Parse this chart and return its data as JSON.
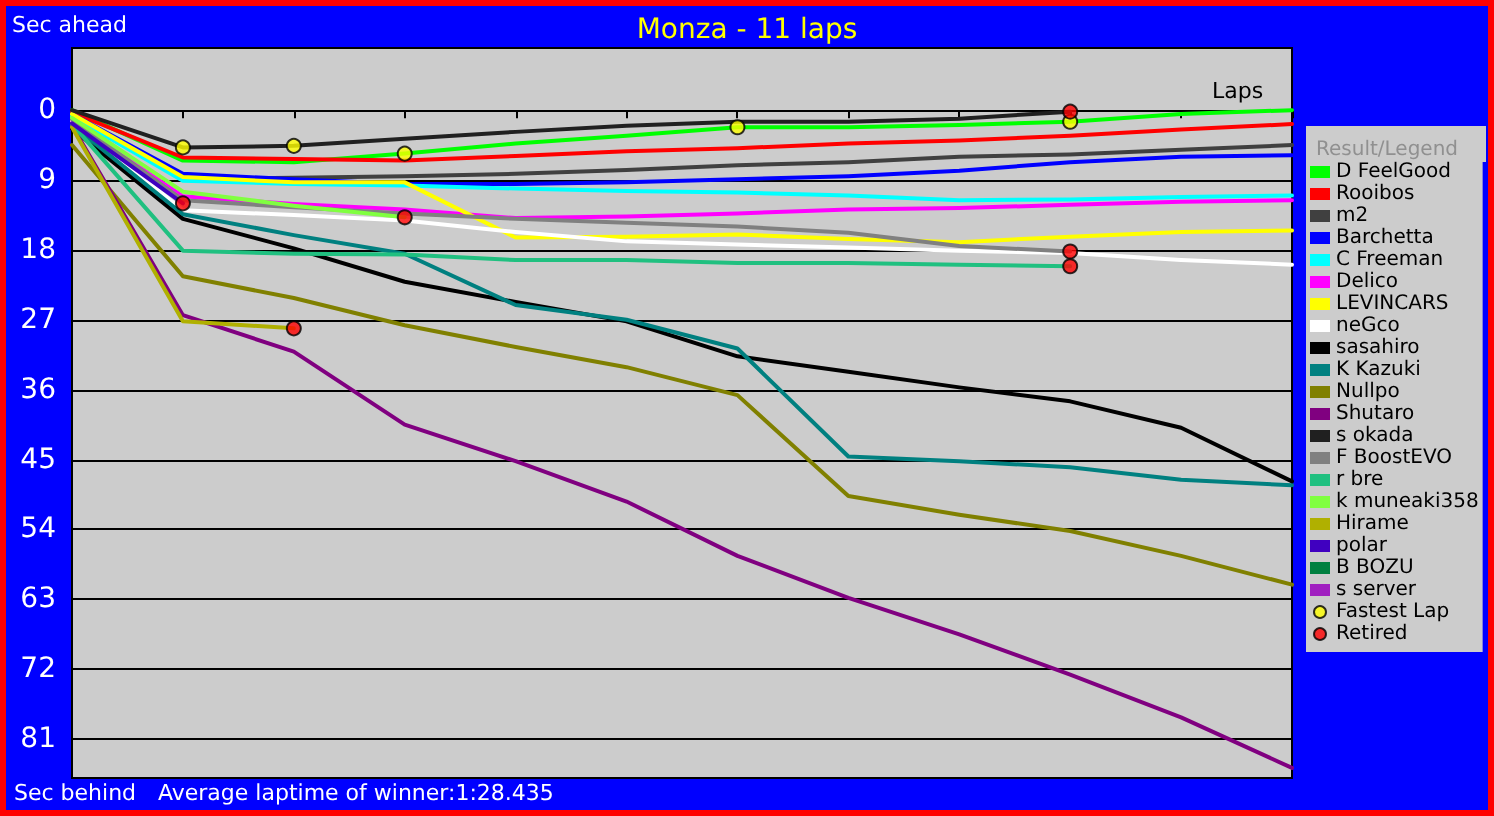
{
  "chart_data": {
    "type": "line",
    "title": "Monza - 11 laps",
    "ylabel": "Sec ahead",
    "xlabel": "Laps",
    "legend_title": "Result/Legend",
    "annotations": [
      "Sec behind",
      "Average laptime of winner:1:28.435"
    ],
    "categories": [
      null,
      null,
      null,
      null,
      null,
      null,
      null,
      null,
      null,
      null,
      null,
      null
    ],
    "ylim": [
      86,
      -8
    ],
    "yticks": [
      0,
      9,
      18,
      27,
      36,
      45,
      54,
      63,
      72,
      81
    ],
    "grid": "y",
    "legend": "right",
    "marker": "none",
    "line_style": "solid",
    "tick_labels": "y",
    "series": [
      {
        "name": "D FeelGood",
        "color": "#00ff00",
        "values": [
          0,
          6.5,
          6.7,
          5.6,
          4.3,
          3.3,
          2.2,
          2.2,
          1.9,
          1.5,
          0.5,
          0
        ]
      },
      {
        "name": "Rooibos",
        "color": "#ff0000",
        "values": [
          0.3,
          6.1,
          6.3,
          6.5,
          5.9,
          5.3,
          4.9,
          4.3,
          3.9,
          3.3,
          2.5,
          1.8
        ]
      },
      {
        "name": "m2",
        "color": "#404040",
        "values": [
          0.8,
          8.9,
          8.7,
          8.5,
          8.2,
          7.7,
          7.1,
          6.7,
          6.0,
          5.7,
          5.1,
          4.5
        ]
      },
      {
        "name": "Barchetta",
        "color": "#0000ff",
        "values": [
          0.5,
          8.2,
          8.9,
          9.5,
          9.5,
          9.3,
          8.9,
          8.5,
          7.8,
          6.7,
          6.0,
          5.8
        ]
      },
      {
        "name": "C Freeman",
        "color": "#00ffff",
        "values": [
          0.8,
          9.1,
          9.5,
          9.7,
          10.1,
          10.4,
          10.6,
          11.0,
          11.6,
          11.5,
          11.2,
          11.0
        ]
      },
      {
        "name": "Delico",
        "color": "#ff00ff",
        "values": [
          1.5,
          11.1,
          12.1,
          12.8,
          13.9,
          13.7,
          13.3,
          12.8,
          12.6,
          12.2,
          11.8,
          11.6
        ]
      },
      {
        "name": "LEVINCARS",
        "color": "#ffff00",
        "values": [
          0.5,
          8.6,
          9.3,
          9.3,
          16.4,
          16.3,
          16.0,
          16.6,
          17.0,
          16.3,
          15.7,
          15.5
        ]
      },
      {
        "name": "neGco",
        "color": "#ffffff",
        "values": [
          1.3,
          12.9,
          13.5,
          14.2,
          15.7,
          16.9,
          17.3,
          17.7,
          18.1,
          18.4,
          19.3,
          19.9
        ]
      },
      {
        "name": "sasahiro",
        "color": "#000000",
        "values": [
          2.4,
          14.0,
          17.8,
          22.1,
          24.7,
          27.2,
          31.7,
          33.7,
          35.7,
          37.5,
          40.9,
          47.8
        ]
      },
      {
        "name": "K Kazuki",
        "color": "#008080",
        "values": [
          1.9,
          13.4,
          16.1,
          18.5,
          25.1,
          27.0,
          30.7,
          44.6,
          45.2,
          46.0,
          47.6,
          48.3
        ]
      },
      {
        "name": "Nullpo",
        "color": "#808000",
        "values": [
          4.5,
          21.4,
          24.2,
          27.7,
          30.5,
          33.1,
          36.7,
          49.7,
          52.1,
          54.2,
          57.4,
          61.1
        ]
      },
      {
        "name": "Shutaro",
        "color": "#800080",
        "values": [
          2.0,
          26.4,
          31.1,
          40.5,
          45.2,
          50.4,
          57.4,
          62.8,
          67.5,
          72.7,
          78.2,
          84.7
        ]
      },
      {
        "name": "s okada",
        "color": "#202020",
        "values": [
          0,
          4.8,
          4.6,
          3.7,
          2.8,
          2.0,
          1.5,
          1.5,
          1.1,
          0.2,
          null,
          null
        ]
      },
      {
        "name": "F BoostEVO",
        "color": "#808080",
        "values": [
          1.2,
          11.6,
          12.5,
          13.3,
          14.0,
          14.5,
          15.0,
          15.8,
          17.5,
          18.2,
          null,
          null
        ]
      },
      {
        "name": "r bre",
        "color": "#20c080",
        "values": [
          1.8,
          18.1,
          18.5,
          18.6,
          19.3,
          19.3,
          19.7,
          19.7,
          19.9,
          20.1,
          null,
          null
        ]
      },
      {
        "name": "k muneaki358",
        "color": "#80ff40",
        "values": [
          1.0,
          10.5,
          12.3,
          13.8,
          null,
          null,
          null,
          null,
          null,
          null,
          null,
          null
        ]
      },
      {
        "name": "Hirame",
        "color": "#b0b000",
        "values": [
          2.2,
          27.2,
          28.1,
          null,
          null,
          null,
          null,
          null,
          null,
          null,
          null,
          null
        ]
      },
      {
        "name": "polar",
        "color": "#4000c0",
        "values": [
          1.7,
          12.0,
          null,
          null,
          null,
          null,
          null,
          null,
          null,
          null,
          null,
          null
        ]
      },
      {
        "name": "B BOZU",
        "color": "#008040",
        "values": [
          null,
          null,
          null,
          null,
          null,
          null,
          null,
          null,
          null,
          null,
          null,
          null
        ]
      },
      {
        "name": "s server",
        "color": "#a020c0",
        "values": [
          null,
          null,
          null,
          null,
          null,
          null,
          null,
          null,
          null,
          null,
          null,
          null
        ]
      },
      {
        "name": "Fastest Lap",
        "type": "scatter",
        "marker": "circle",
        "color": "#ffff00",
        "values": [
          null,
          4.8,
          4.6,
          5.6,
          null,
          null,
          2.2,
          null,
          null,
          1.5,
          null,
          null
        ]
      },
      {
        "name": "Retired",
        "type": "scatter",
        "marker": "circle",
        "color": "#ff0000",
        "values": [
          null,
          12.0,
          28.1,
          13.8,
          null,
          null,
          null,
          null,
          null,
          0.2,
          null,
          null
        ]
      },
      {
        "type": "scatter",
        "marker": "circle",
        "color": "#ff0000",
        "values": [
          null,
          null,
          null,
          null,
          null,
          null,
          null,
          null,
          null,
          18.2,
          null,
          null
        ]
      },
      {
        "type": "scatter",
        "marker": "circle",
        "color": "#ff0000",
        "values": [
          null,
          null,
          null,
          null,
          null,
          null,
          null,
          null,
          null,
          20.1,
          null,
          null
        ]
      }
    ]
  }
}
